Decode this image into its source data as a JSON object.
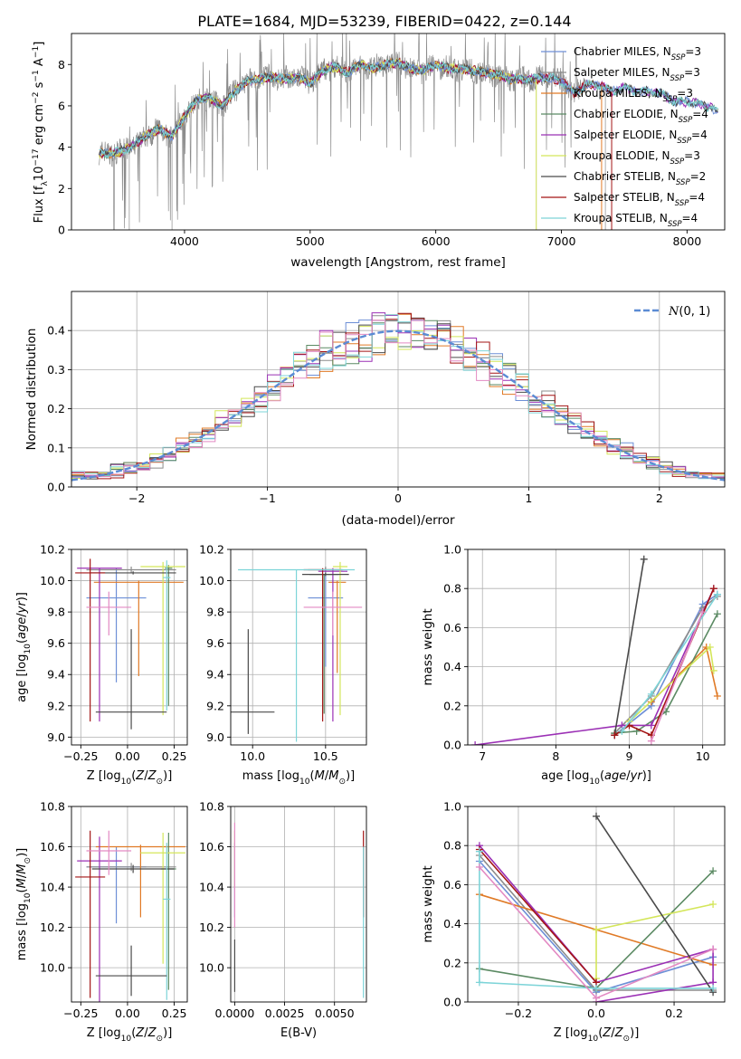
{
  "title": "PLATE=1684, MJD=53239, FIBERID=0422, z=0.144",
  "colors": {
    "Chabrier MILES": "#6d8fd6",
    "Salpeter MILES": "#8c8c8c",
    "Kroupa MILES": "#e07a26",
    "Chabrier ELODIE": "#5b8a63",
    "Salpeter ELODIE": "#9b30b5",
    "Kroupa ELODIE": "#d4e65a",
    "Chabrier STELIB": "#4a4a4a",
    "Salpeter STELIB": "#a31515",
    "Kroupa STELIB": "#7dd4d8",
    "extra": "#e38ac3"
  },
  "chart_data": [
    {
      "id": "spectrum",
      "type": "line",
      "xlabel": "wavelength [Angstrom, rest frame]",
      "ylabel": "Flux [fλ10⁻¹⁷ erg cm⁻² s⁻¹ A⁻¹]",
      "xlim": [
        3100,
        8300
      ],
      "ylim": [
        0,
        9.5
      ],
      "xticks": [
        4000,
        5000,
        6000,
        7000,
        8000
      ],
      "yticks": [
        0,
        2,
        4,
        6,
        8
      ],
      "grid": false,
      "legend_position": "top-right",
      "legend": [
        {
          "label": "Chabrier MILES, N",
          "sub": "SSP",
          "eq": "=3"
        },
        {
          "label": "Salpeter MILES, N",
          "sub": "SSP",
          "eq": "=3"
        },
        {
          "label": "Kroupa MILES, N",
          "sub": "SSP",
          "eq": "=3"
        },
        {
          "label": "Chabrier ELODIE, N",
          "sub": "SSP",
          "eq": "=4"
        },
        {
          "label": "Salpeter ELODIE, N",
          "sub": "SSP",
          "eq": "=4"
        },
        {
          "label": "Kroupa ELODIE, N",
          "sub": "SSP",
          "eq": "=3"
        },
        {
          "label": "Chabrier STELIB, N",
          "sub": "SSP",
          "eq": "=2"
        },
        {
          "label": "Salpeter STELIB, N",
          "sub": "SSP",
          "eq": "=4"
        },
        {
          "label": "Kroupa STELIB, N",
          "sub": "SSP",
          "eq": "=4"
        }
      ],
      "continuum": {
        "x": [
          3320,
          3400,
          3500,
          3600,
          3700,
          3800,
          3900,
          4000,
          4100,
          4200,
          4300,
          4400,
          4500,
          4600,
          4700,
          4800,
          4900,
          5000,
          5100,
          5200,
          5300,
          5400,
          5500,
          5600,
          5700,
          5800,
          5900,
          6000,
          6100,
          6200,
          6300,
          6400,
          6500,
          6600,
          6700,
          6800,
          6900,
          7000,
          7100,
          7200,
          7300,
          7400,
          7500,
          7600,
          7700,
          7800,
          7900,
          8000,
          8100,
          8200,
          8250
        ],
        "y": [
          3.7,
          3.7,
          3.8,
          4.1,
          4.6,
          4.9,
          4.5,
          5.5,
          6.3,
          6.4,
          6.0,
          6.7,
          7.2,
          7.3,
          7.4,
          7.3,
          7.4,
          7.1,
          7.7,
          7.9,
          7.6,
          8.0,
          7.8,
          8.0,
          8.1,
          7.8,
          7.7,
          8.0,
          7.8,
          7.8,
          7.7,
          7.6,
          7.5,
          7.3,
          7.3,
          7.3,
          7.4,
          7.2,
          6.6,
          7.0,
          7.0,
          6.7,
          6.9,
          6.7,
          6.7,
          6.6,
          6.2,
          6.2,
          6.1,
          5.9,
          5.7
        ]
      },
      "noisy_series": "Salpeter MILES"
    },
    {
      "id": "residuals",
      "type": "histogram",
      "xlabel": "(data-model)/error",
      "ylabel": "Normed distribution",
      "xlim": [
        -2.5,
        2.5
      ],
      "ylim": [
        0,
        0.5
      ],
      "xticks": [
        -2,
        -1,
        0,
        1,
        2
      ],
      "yticks": [
        0.0,
        0.1,
        0.2,
        0.3,
        0.4
      ],
      "grid": true,
      "bin_width": 0.1,
      "legend_position": "top-right",
      "legend": [
        {
          "label": "N(0,1)"
        }
      ],
      "gaussian": {
        "mean": 0,
        "sigma": 1
      }
    },
    {
      "id": "age_vs_Z",
      "type": "errorbar",
      "xlabel": "Z [log10(Z/Z⊙)]",
      "ylabel": "age [log10(age/yr)]",
      "xlim": [
        -0.3,
        0.32
      ],
      "ylim": [
        8.95,
        10.2
      ],
      "xticks": [
        -0.25,
        0.0,
        0.25
      ],
      "yticks": [
        9.0,
        9.2,
        9.4,
        9.6,
        9.8,
        10.0,
        10.2
      ],
      "grid": true,
      "points": [
        {
          "s": "Chabrier MILES",
          "x": -0.06,
          "xerr": 0.16,
          "y": 9.89,
          "yerr": [
            0.54,
            0.19
          ]
        },
        {
          "s": "Salpeter MILES",
          "x": 0.02,
          "xerr": 0.24,
          "y": 10.07,
          "yerr": [
            0.02,
            0.02
          ]
        },
        {
          "s": "Kroupa MILES",
          "x": 0.06,
          "xerr": 0.24,
          "y": 9.99,
          "yerr": [
            0.6,
            0.01
          ]
        },
        {
          "s": "Chabrier ELODIE",
          "x": 0.22,
          "xerr": 0.02,
          "y": 10.08,
          "yerr": [
            0.88,
            0.02
          ]
        },
        {
          "s": "Salpeter ELODIE",
          "x": -0.15,
          "xerr": 0.12,
          "y": 10.08,
          "yerr": [
            0.98,
            0.0
          ]
        },
        {
          "s": "Kroupa ELODIE",
          "x": 0.19,
          "xerr": 0.12,
          "y": 10.09,
          "yerr": [
            0.95,
            0.03
          ]
        },
        {
          "s": "Chabrier STELIB",
          "x": 0.03,
          "xerr": 0.23,
          "y": 10.05,
          "yerr": [
            0.01,
            0.01
          ]
        },
        {
          "s": "Salpeter STELIB",
          "x": -0.2,
          "xerr": 0.08,
          "y": 10.05,
          "yerr": [
            0.95,
            0.09
          ]
        },
        {
          "s": "Kroupa STELIB",
          "x": 0.21,
          "xerr": 0.02,
          "y": 10.02,
          "yerr": [
            0.85,
            0.11
          ]
        },
        {
          "s": "extra",
          "x": -0.1,
          "xerr": 0.12,
          "y": 9.83,
          "yerr": [
            0.18,
            0.1
          ]
        },
        {
          "s": "Chabrier STELIB",
          "x": 0.02,
          "xerr": 0.19,
          "y": 9.16,
          "yerr": [
            0.11,
            0.53
          ]
        }
      ]
    },
    {
      "id": "age_vs_mass",
      "type": "errorbar",
      "xlabel": "mass [log10(M/M⊙)]",
      "ylabel": "",
      "xlim": [
        9.85,
        10.78
      ],
      "ylim": [
        8.95,
        10.2
      ],
      "xticks": [
        10.0,
        10.5
      ],
      "yticks": [
        9.0,
        9.2,
        9.4,
        9.6,
        9.8,
        10.0,
        10.2
      ],
      "grid": true,
      "points": [
        {
          "s": "Chabrier MILES",
          "x": 10.5,
          "xerr": 0.12,
          "y": 9.89,
          "yerr": [
            0.44,
            0.19
          ]
        },
        {
          "s": "Salpeter MILES",
          "x": 10.5,
          "xerr": 0.12,
          "y": 10.07,
          "yerr": [
            0.02,
            0.02
          ]
        },
        {
          "s": "Kroupa MILES",
          "x": 10.58,
          "xerr": 0.06,
          "y": 9.99,
          "yerr": [
            0.58,
            0.01
          ]
        },
        {
          "s": "Chabrier ELODIE",
          "x": 10.49,
          "xerr": 0.1,
          "y": 10.04,
          "yerr": [
            0.89,
            0.0
          ]
        },
        {
          "s": "Salpeter ELODIE",
          "x": 10.55,
          "xerr": 0.1,
          "y": 10.06,
          "yerr": [
            0.96,
            0.02
          ]
        },
        {
          "s": "Kroupa ELODIE",
          "x": 10.6,
          "xerr": 0.05,
          "y": 10.09,
          "yerr": [
            0.95,
            0.03
          ]
        },
        {
          "s": "Chabrier STELIB",
          "x": 10.5,
          "xerr": 0.16,
          "y": 10.04,
          "yerr": [
            0.01,
            0.01
          ]
        },
        {
          "s": "Salpeter STELIB",
          "x": 10.48,
          "xerr": 0.13,
          "y": 10.07,
          "yerr": [
            0.97,
            0.01
          ]
        },
        {
          "s": "Kroupa STELIB",
          "x": 10.3,
          "xerr": 0.4,
          "y": 10.07,
          "yerr": [
            1.1,
            0.0
          ]
        },
        {
          "s": "extra",
          "x": 10.55,
          "xerr": 0.2,
          "y": 9.83,
          "yerr": [
            0.18,
            0.1
          ]
        },
        {
          "s": "Chabrier STELIB",
          "x": 9.97,
          "xerr": 0.18,
          "y": 9.16,
          "yerr": [
            0.14,
            0.53
          ]
        }
      ]
    },
    {
      "id": "weight_vs_age",
      "type": "line",
      "xlabel": "age [log10(age/yr)]",
      "ylabel": "mass weight",
      "xlim": [
        6.8,
        10.3
      ],
      "ylim": [
        0,
        1.0
      ],
      "xticks": [
        7,
        8,
        9,
        10
      ],
      "yticks": [
        0.0,
        0.2,
        0.4,
        0.6,
        0.8,
        1.0
      ],
      "grid": true,
      "series": [
        {
          "s": "Chabrier MILES",
          "x": [
            8.8,
            9.3,
            10.0,
            10.2
          ],
          "y": [
            0.05,
            0.2,
            0.72,
            0.77
          ]
        },
        {
          "s": "Salpeter MILES",
          "x": [
            8.8,
            9.3,
            10.0,
            10.2
          ],
          "y": [
            0.06,
            0.25,
            0.7,
            0.76
          ]
        },
        {
          "s": "Kroupa MILES",
          "x": [
            9.3,
            10.05,
            10.2
          ],
          "y": [
            0.22,
            0.5,
            0.25
          ]
        },
        {
          "s": "Chabrier ELODIE",
          "x": [
            8.8,
            9.1,
            9.5,
            10.2
          ],
          "y": [
            0.06,
            0.07,
            0.17,
            0.67
          ]
        },
        {
          "s": "Salpeter ELODIE",
          "x": [
            6.9,
            8.9,
            9.3,
            10.15
          ],
          "y": [
            0.0,
            0.1,
            0.1,
            0.8
          ]
        },
        {
          "s": "Kroupa ELODIE",
          "x": [
            9.0,
            10.1,
            10.15
          ],
          "y": [
            0.12,
            0.5,
            0.38
          ]
        },
        {
          "s": "Chabrier STELIB",
          "x": [
            8.8,
            9.2
          ],
          "y": [
            0.05,
            0.95
          ]
        },
        {
          "s": "Salpeter STELIB",
          "x": [
            8.8,
            9.0,
            9.3,
            10.15
          ],
          "y": [
            0.05,
            0.1,
            0.05,
            0.8
          ]
        },
        {
          "s": "Kroupa STELIB",
          "x": [
            8.9,
            9.3,
            10.2
          ],
          "y": [
            0.07,
            0.26,
            0.77
          ]
        },
        {
          "s": "extra",
          "x": [
            9.3,
            10.0
          ],
          "y": [
            0.02,
            0.68
          ]
        }
      ]
    },
    {
      "id": "mass_vs_Z",
      "type": "errorbar",
      "xlabel": "Z [log10(Z/Z⊙)]",
      "ylabel": "mass [log10(M/M⊙)]",
      "xlim": [
        -0.3,
        0.32
      ],
      "ylim": [
        9.83,
        10.8
      ],
      "xticks": [
        -0.25,
        0.0,
        0.25
      ],
      "yticks": [
        10.0,
        10.2,
        10.4,
        10.6,
        10.8
      ],
      "grid": true,
      "points": [
        {
          "s": "Chabrier MILES",
          "x": -0.06,
          "xerr": 0.16,
          "y": 10.5,
          "yerr": [
            0.28,
            0.1
          ]
        },
        {
          "s": "Salpeter MILES",
          "x": 0.02,
          "xerr": 0.24,
          "y": 10.5,
          "yerr": [
            0.02,
            0.02
          ]
        },
        {
          "s": "Kroupa MILES",
          "x": 0.07,
          "xerr": 0.24,
          "y": 10.6,
          "yerr": [
            0.35,
            0.01
          ]
        },
        {
          "s": "Chabrier ELODIE",
          "x": 0.22,
          "xerr": 0.04,
          "y": 10.49,
          "yerr": [
            0.6,
            0.18
          ]
        },
        {
          "s": "Salpeter ELODIE",
          "x": -0.15,
          "xerr": 0.12,
          "y": 10.53,
          "yerr": [
            0.7,
            0.12
          ]
        },
        {
          "s": "Kroupa ELODIE",
          "x": 0.19,
          "xerr": 0.12,
          "y": 10.57,
          "yerr": [
            0.55,
            0.1
          ]
        },
        {
          "s": "Chabrier STELIB",
          "x": 0.03,
          "xerr": 0.22,
          "y": 10.49,
          "yerr": [
            0.02,
            0.02
          ]
        },
        {
          "s": "Salpeter STELIB",
          "x": -0.2,
          "xerr": 0.08,
          "y": 10.45,
          "yerr": [
            0.6,
            0.23
          ]
        },
        {
          "s": "Kroupa STELIB",
          "x": 0.21,
          "xerr": 0.02,
          "y": 10.34,
          "yerr": [
            0.5,
            0.28
          ]
        },
        {
          "s": "extra",
          "x": -0.1,
          "xerr": 0.12,
          "y": 10.58,
          "yerr": [
            0.12,
            0.1
          ]
        },
        {
          "s": "Chabrier STELIB",
          "x": 0.02,
          "xerr": 0.19,
          "y": 9.96,
          "yerr": [
            0.1,
            0.15
          ]
        }
      ]
    },
    {
      "id": "mass_vs_EBV",
      "type": "errorbar",
      "xlabel": "E(B-V)",
      "ylabel": "",
      "xlim": [
        -0.0002,
        0.0066
      ],
      "ylim": [
        9.83,
        10.8
      ],
      "xticks": [
        0.0,
        0.0025,
        0.005
      ],
      "xtick_labels": [
        "0.0000",
        "0.0025",
        "0.0050"
      ],
      "yticks": [
        10.0,
        10.2,
        10.4,
        10.6,
        10.8
      ],
      "grid": true,
      "points": [
        {
          "s": "Chabrier MILES",
          "x": 0.0,
          "xerr": 0.0,
          "y": 10.5,
          "yerr": [
            0.25,
            0.12
          ]
        },
        {
          "s": "Kroupa ELODIE",
          "x": 0.0,
          "xerr": 0.0,
          "y": 10.6,
          "yerr": [
            0.2,
            0.08
          ]
        },
        {
          "s": "extra",
          "x": 0.0,
          "xerr": 0.0,
          "y": 10.6,
          "yerr": [
            0.4,
            0.12
          ]
        },
        {
          "s": "Chabrier STELIB",
          "x": 0.0,
          "xerr": 0.0,
          "y": 10.0,
          "yerr": [
            0.12,
            0.14
          ]
        },
        {
          "s": "Salpeter STELIB",
          "x": 0.00645,
          "xerr": 0.0,
          "y": 10.5,
          "yerr": [
            0.25,
            0.18
          ]
        },
        {
          "s": "Kroupa STELIB",
          "x": 0.00645,
          "xerr": 0.0,
          "y": 10.3,
          "yerr": [
            0.45,
            0.3
          ]
        }
      ]
    },
    {
      "id": "weight_vs_Z",
      "type": "line",
      "xlabel": "Z [log10(Z/Z⊙)]",
      "ylabel": "mass weight",
      "xlim": [
        -0.33,
        0.33
      ],
      "ylim": [
        0,
        1.0
      ],
      "xticks": [
        -0.2,
        0.0,
        0.2
      ],
      "yticks": [
        0.0,
        0.2,
        0.4,
        0.6,
        0.8,
        1.0
      ],
      "grid": true,
      "series": [
        {
          "s": "Chabrier MILES",
          "x": [
            -0.3,
            0.0,
            0.3
          ],
          "y": [
            0.72,
            0.05,
            0.23
          ]
        },
        {
          "s": "Salpeter MILES",
          "x": [
            -0.3,
            0.0,
            0.3
          ],
          "y": [
            0.75,
            0.06,
            0.06
          ]
        },
        {
          "s": "Kroupa MILES",
          "x": [
            -0.3,
            0.0,
            0.3
          ],
          "y": [
            0.55,
            0.37,
            0.19
          ]
        },
        {
          "s": "Chabrier ELODIE",
          "x": [
            -0.3,
            0.0,
            0.3
          ],
          "y": [
            0.17,
            0.07,
            0.67
          ]
        },
        {
          "s": "Salpeter ELODIE",
          "x": [
            -0.3,
            0.0,
            0.3,
            0.3
          ],
          "y": [
            0.8,
            0.1,
            0.27,
            0.1
          ]
        },
        {
          "s": "Salpeter ELODIE",
          "x": [
            0.0,
            0.3
          ],
          "y": [
            0.0,
            0.1
          ]
        },
        {
          "s": "Kroupa ELODIE",
          "x": [
            0.0,
            0.0,
            0.3
          ],
          "y": [
            0.12,
            0.37,
            0.5
          ]
        },
        {
          "s": "Chabrier STELIB",
          "x": [
            0.0,
            0.3
          ],
          "y": [
            0.95,
            0.05
          ]
        },
        {
          "s": "Salpeter STELIB",
          "x": [
            -0.3,
            0.0
          ],
          "y": [
            0.78,
            0.1
          ]
        },
        {
          "s": "Kroupa STELIB",
          "x": [
            -0.3,
            -0.3,
            0.0,
            0.3
          ],
          "y": [
            0.77,
            0.1,
            0.07,
            0.07
          ]
        },
        {
          "s": "extra",
          "x": [
            -0.3,
            0.0,
            0.3
          ],
          "y": [
            0.69,
            0.02,
            0.27
          ]
        }
      ]
    }
  ]
}
